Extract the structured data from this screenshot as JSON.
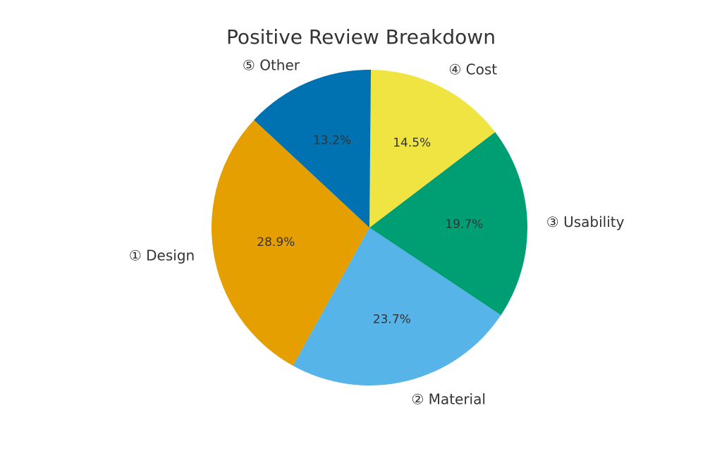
{
  "chart_data": {
    "type": "pie",
    "title": "Positive Review Breakdown",
    "categories": [
      "① Design",
      "② Material",
      "③ Usability",
      "④ Cost",
      "⑤ Other"
    ],
    "values": [
      28.9,
      23.7,
      19.7,
      14.5,
      13.2
    ],
    "value_labels": [
      "28.9%",
      "23.7%",
      "19.7%",
      "14.5%",
      "13.2%"
    ],
    "colors": [
      "#E69F00",
      "#56B4E9",
      "#009E73",
      "#F0E442",
      "#0072B2"
    ],
    "start_angle_deg": 137,
    "direction": "counterclockwise",
    "legend": "none"
  }
}
